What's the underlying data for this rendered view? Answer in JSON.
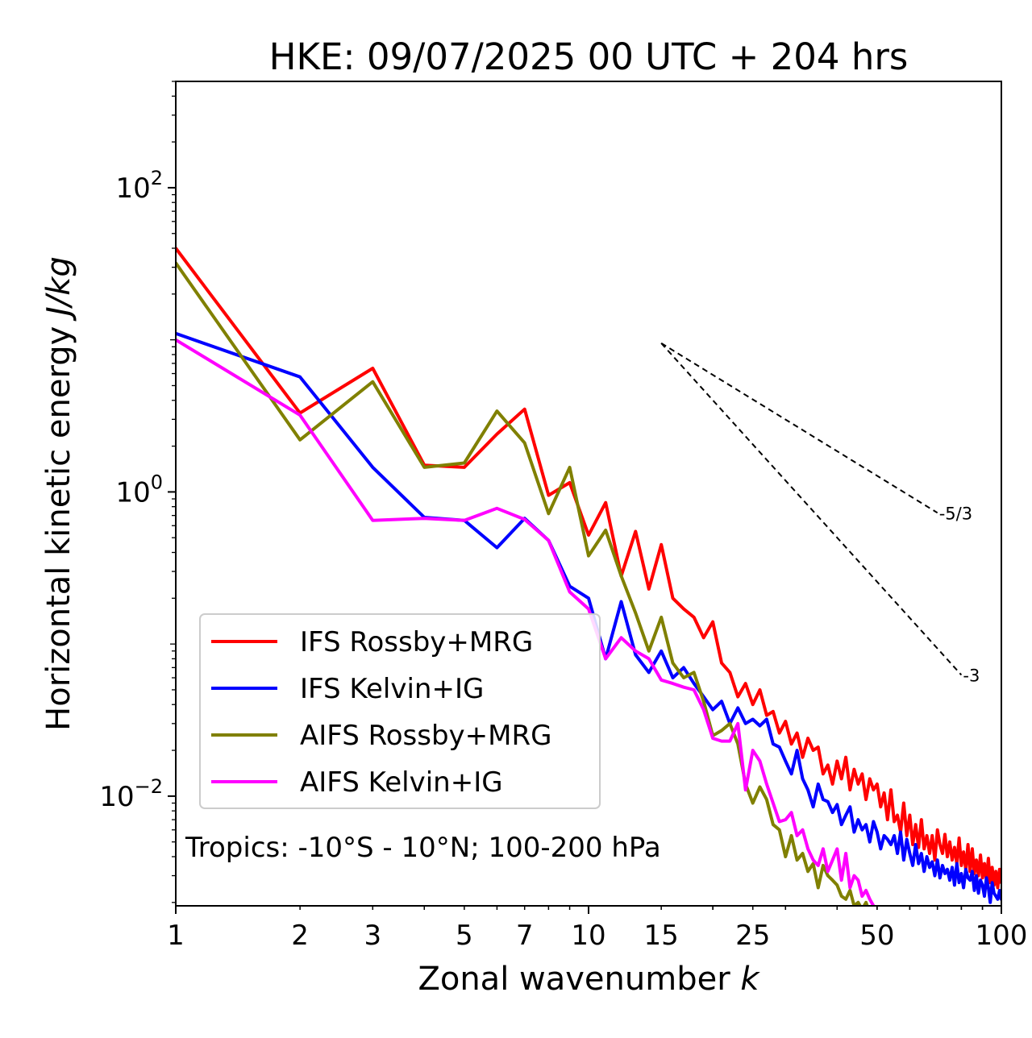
{
  "title": "HKE: 09/07/2025 00 UTC + 204 hrs",
  "annotation": "Tropics: -10°S - 10°N; 100-200 hPa",
  "chart_data": {
    "type": "line",
    "title": "HKE: 09/07/2025 00 UTC + 204 hrs",
    "xlabel": "Zonal wavenumber k",
    "ylabel": "Horizontal kinetic energy J/kg",
    "xscale": "log",
    "yscale": "log",
    "xlim": [
      1,
      100
    ],
    "ylim": [
      0.0019,
      500
    ],
    "x_ticks": [
      1,
      2,
      3,
      5,
      7,
      10,
      15,
      25,
      50,
      100
    ],
    "y_ticks": [
      {
        "value": 100,
        "base": "10",
        "exp": "2"
      },
      {
        "value": 1,
        "base": "10",
        "exp": "0"
      },
      {
        "value": 0.01,
        "base": "10",
        "exp": "−2"
      }
    ],
    "legend_position": "lower-left",
    "series": [
      {
        "name": "IFS Rossby+MRG",
        "color": "#ff0000",
        "x": [
          1,
          2,
          3,
          4,
          5,
          6,
          7,
          8,
          9,
          10,
          11,
          12,
          13,
          14,
          15,
          16,
          17,
          18,
          19,
          20,
          21,
          22,
          23,
          24,
          25,
          26,
          27,
          28,
          29,
          30,
          31,
          32,
          33,
          34,
          35,
          36,
          37,
          38,
          39,
          40,
          41,
          42,
          43,
          44,
          45,
          46,
          47,
          48,
          49,
          50,
          51,
          52,
          53,
          54,
          55,
          56,
          57,
          58,
          59,
          60,
          61,
          62,
          63,
          64,
          65,
          66,
          67,
          68,
          69,
          70,
          71,
          72,
          73,
          74,
          75,
          76,
          77,
          78,
          79,
          80,
          81,
          82,
          83,
          84,
          85,
          86,
          87,
          88,
          89,
          90,
          91,
          92,
          93,
          94,
          95,
          96,
          97,
          98,
          99,
          100
        ],
        "y": [
          40,
          3.3,
          6.5,
          1.5,
          1.45,
          2.4,
          3.5,
          0.95,
          1.15,
          0.52,
          0.85,
          0.28,
          0.55,
          0.23,
          0.45,
          0.2,
          0.17,
          0.15,
          0.11,
          0.14,
          0.075,
          0.065,
          0.045,
          0.055,
          0.04,
          0.05,
          0.034,
          0.036,
          0.026,
          0.031,
          0.022,
          0.026,
          0.018,
          0.024,
          0.02,
          0.021,
          0.014,
          0.016,
          0.012,
          0.017,
          0.013,
          0.018,
          0.011,
          0.015,
          0.012,
          0.014,
          0.0095,
          0.013,
          0.011,
          0.012,
          0.0085,
          0.0105,
          0.007,
          0.011,
          0.0068,
          0.0075,
          0.0058,
          0.009,
          0.0055,
          0.0075,
          0.0048,
          0.0065,
          0.0046,
          0.007,
          0.0045,
          0.0055,
          0.0042,
          0.0055,
          0.0038,
          0.006,
          0.0048,
          0.0042,
          0.0056,
          0.004,
          0.005,
          0.0038,
          0.0046,
          0.0036,
          0.0053,
          0.0035,
          0.0043,
          0.0033,
          0.0048,
          0.0032,
          0.0045,
          0.0031,
          0.0038,
          0.003,
          0.0041,
          0.0029,
          0.0036,
          0.0028,
          0.0039,
          0.0027,
          0.0034,
          0.0026,
          0.0032,
          0.0025,
          0.0033,
          0.0027
        ]
      },
      {
        "name": "IFS Kelvin+IG",
        "color": "#0000ff",
        "x": [
          1,
          2,
          3,
          4,
          5,
          6,
          7,
          8,
          9,
          10,
          11,
          12,
          13,
          14,
          15,
          16,
          17,
          18,
          19,
          20,
          21,
          22,
          23,
          24,
          25,
          26,
          27,
          28,
          29,
          30,
          31,
          32,
          33,
          34,
          35,
          36,
          37,
          38,
          39,
          40,
          41,
          42,
          43,
          44,
          45,
          46,
          47,
          48,
          49,
          50,
          51,
          52,
          53,
          54,
          55,
          56,
          57,
          58,
          59,
          60,
          61,
          62,
          63,
          64,
          65,
          66,
          67,
          68,
          69,
          70,
          71,
          72,
          73,
          74,
          75,
          76,
          77,
          78,
          79,
          80,
          81,
          82,
          83,
          84,
          85,
          86,
          87,
          88,
          89,
          90,
          91,
          92,
          93,
          94,
          95,
          96,
          97,
          98,
          99,
          100
        ],
        "y": [
          11,
          5.7,
          1.45,
          0.68,
          0.65,
          0.43,
          0.67,
          0.48,
          0.24,
          0.2,
          0.08,
          0.19,
          0.085,
          0.065,
          0.09,
          0.06,
          0.07,
          0.055,
          0.045,
          0.037,
          0.042,
          0.03,
          0.038,
          0.03,
          0.032,
          0.029,
          0.032,
          0.022,
          0.021,
          0.017,
          0.014,
          0.02,
          0.013,
          0.011,
          0.0085,
          0.012,
          0.0095,
          0.0092,
          0.0078,
          0.0088,
          0.0065,
          0.0075,
          0.0085,
          0.0058,
          0.007,
          0.006,
          0.0065,
          0.005,
          0.0068,
          0.0058,
          0.0045,
          0.0055,
          0.0052,
          0.0048,
          0.0055,
          0.0042,
          0.0058,
          0.0038,
          0.0052,
          0.0042,
          0.0035,
          0.0048,
          0.0036,
          0.0042,
          0.0032,
          0.004,
          0.0034,
          0.0037,
          0.003,
          0.0038,
          0.0029,
          0.0035,
          0.0031,
          0.0033,
          0.0028,
          0.0034,
          0.0026,
          0.0036,
          0.0027,
          0.0031,
          0.0025,
          0.0033,
          0.0029,
          0.0028,
          0.0032,
          0.0024,
          0.003,
          0.0023,
          0.0028,
          0.0026,
          0.0022,
          0.0029,
          0.0025,
          0.002,
          0.0027,
          0.0023,
          0.0022,
          0.0021,
          0.0024,
          0.0021
        ]
      },
      {
        "name": "AIFS Rossby+MRG",
        "color": "#808000",
        "x": [
          1,
          2,
          3,
          4,
          5,
          6,
          7,
          8,
          9,
          10,
          11,
          12,
          13,
          14,
          15,
          16,
          17,
          18,
          19,
          20,
          21,
          22,
          23,
          24,
          25,
          26,
          27,
          28,
          29,
          30,
          31,
          32,
          33,
          34,
          35,
          36,
          37,
          38,
          39,
          40,
          41,
          42,
          43,
          44,
          45,
          46,
          47,
          48,
          49,
          50,
          51,
          52,
          53,
          54,
          55
        ],
        "y": [
          32,
          2.2,
          5.3,
          1.45,
          1.55,
          3.4,
          2.1,
          0.72,
          1.45,
          0.38,
          0.56,
          0.28,
          0.16,
          0.09,
          0.15,
          0.075,
          0.06,
          0.065,
          0.042,
          0.025,
          0.027,
          0.03,
          0.022,
          0.012,
          0.009,
          0.0115,
          0.0095,
          0.0065,
          0.006,
          0.004,
          0.0055,
          0.0038,
          0.0042,
          0.0032,
          0.0036,
          0.0025,
          0.0035,
          0.003,
          0.0028,
          0.0026,
          0.0022,
          0.0021,
          0.0024,
          0.0019,
          0.002,
          0.0018,
          0.002,
          0.0017,
          0.0018,
          0.0016,
          0.0017,
          0.0016,
          0.0015,
          0.0016,
          0.0015
        ]
      },
      {
        "name": "AIFS Kelvin+IG",
        "color": "#ff00ff",
        "x": [
          1,
          2,
          3,
          4,
          5,
          6,
          7,
          8,
          9,
          10,
          11,
          12,
          13,
          14,
          15,
          16,
          17,
          18,
          19,
          20,
          21,
          22,
          23,
          24,
          25,
          26,
          27,
          28,
          29,
          30,
          31,
          32,
          33,
          34,
          35,
          36,
          37,
          38,
          39,
          40,
          41,
          42,
          43,
          44,
          45,
          46,
          47,
          48,
          49,
          50,
          51,
          52,
          53,
          54,
          55
        ],
        "y": [
          10,
          3.2,
          0.65,
          0.67,
          0.65,
          0.78,
          0.66,
          0.48,
          0.22,
          0.17,
          0.08,
          0.11,
          0.09,
          0.08,
          0.058,
          0.055,
          0.052,
          0.05,
          0.037,
          0.024,
          0.023,
          0.023,
          0.03,
          0.011,
          0.02,
          0.017,
          0.012,
          0.009,
          0.0068,
          0.007,
          0.0078,
          0.0055,
          0.006,
          0.0045,
          0.0038,
          0.0035,
          0.0045,
          0.0032,
          0.0038,
          0.0045,
          0.0028,
          0.0042,
          0.0025,
          0.003,
          0.0028,
          0.0022,
          0.0024,
          0.0021,
          0.0019,
          0.0018,
          0.0017,
          0.0018,
          0.0016,
          0.0016,
          0.0015
        ]
      }
    ],
    "reference_slopes": [
      {
        "label": "-5/3",
        "slope": -1.6667,
        "x": [
          15,
          70
        ],
        "y0": 9.5
      },
      {
        "label": "-3",
        "slope": -3,
        "x": [
          15,
          80
        ],
        "y0": 9.5
      }
    ]
  }
}
